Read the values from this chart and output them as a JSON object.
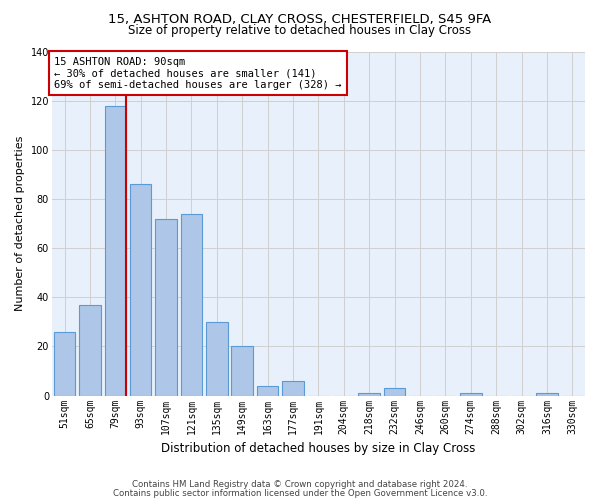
{
  "title_line1": "15, ASHTON ROAD, CLAY CROSS, CHESTERFIELD, S45 9FA",
  "title_line2": "Size of property relative to detached houses in Clay Cross",
  "xlabel": "Distribution of detached houses by size in Clay Cross",
  "ylabel": "Number of detached properties",
  "categories": [
    "51sqm",
    "65sqm",
    "79sqm",
    "93sqm",
    "107sqm",
    "121sqm",
    "135sqm",
    "149sqm",
    "163sqm",
    "177sqm",
    "191sqm",
    "204sqm",
    "218sqm",
    "232sqm",
    "246sqm",
    "260sqm",
    "274sqm",
    "288sqm",
    "302sqm",
    "316sqm",
    "330sqm"
  ],
  "values": [
    26,
    37,
    118,
    86,
    72,
    74,
    30,
    20,
    4,
    6,
    0,
    0,
    1,
    3,
    0,
    0,
    1,
    0,
    0,
    1,
    0
  ],
  "bar_color": "#aec6e8",
  "bar_edge_color": "#5b9bd5",
  "grid_color": "#d0d0d0",
  "background_color": "#ffffff",
  "ax_background": "#e8f0fb",
  "property_bar_index": 2,
  "vline_x_offset": 0.43,
  "annotation_text": "15 ASHTON ROAD: 90sqm\n← 30% of detached houses are smaller (141)\n69% of semi-detached houses are larger (328) →",
  "annotation_box_color": "#ffffff",
  "annotation_box_edge": "#cc0000",
  "vline_color": "#cc0000",
  "footnote1": "Contains HM Land Registry data © Crown copyright and database right 2024.",
  "footnote2": "Contains public sector information licensed under the Open Government Licence v3.0.",
  "ylim": [
    0,
    140
  ],
  "yticks": [
    0,
    20,
    40,
    60,
    80,
    100,
    120,
    140
  ],
  "title1_fontsize": 9.5,
  "title2_fontsize": 8.5,
  "ylabel_fontsize": 8,
  "xlabel_fontsize": 8.5,
  "tick_fontsize": 7,
  "annot_fontsize": 7.5
}
